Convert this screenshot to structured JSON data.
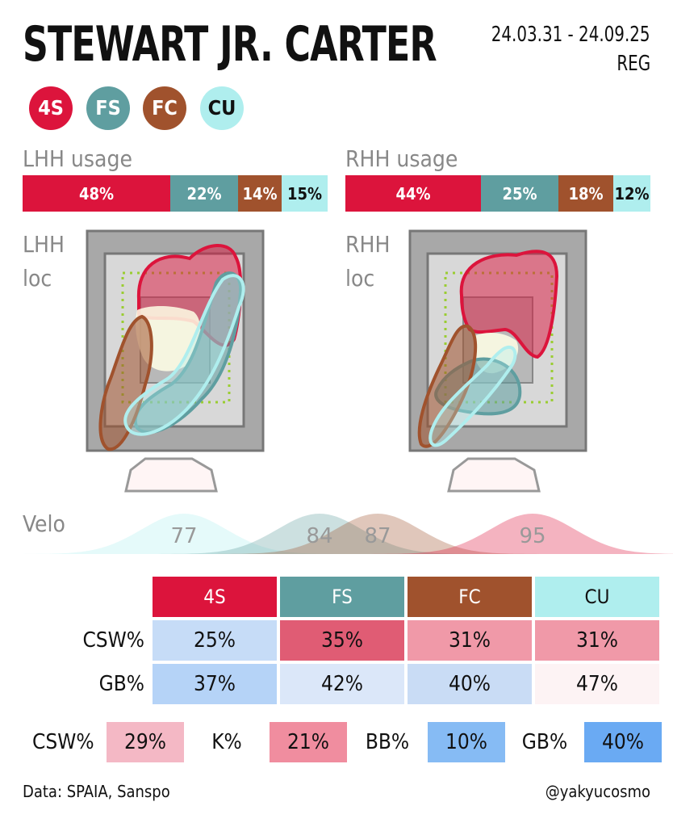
{
  "header": {
    "title": "STEWART JR. CARTER",
    "date_range": "24.03.31 - 24.09.25",
    "season_type": "REG"
  },
  "pitches": [
    {
      "code": "4S",
      "color": "#dc143c"
    },
    {
      "code": "FS",
      "color": "#5f9ea0"
    },
    {
      "code": "FC",
      "color": "#a0522d"
    },
    {
      "code": "CU",
      "color": "#afeeee"
    }
  ],
  "usage": {
    "lhh_label": "LHH usage",
    "rhh_label": "RHH usage",
    "lhh": [
      "48%",
      "22%",
      "14%",
      "15%"
    ],
    "rhh": [
      "44%",
      "25%",
      "18%",
      "12%"
    ]
  },
  "location": {
    "lhh_label_1": "LHH",
    "lhh_label_2": "loc",
    "rhh_label_1": "RHH",
    "rhh_label_2": "loc"
  },
  "chart_data": {
    "type": "stacked-bar",
    "title": "",
    "series_colors": [
      "#dc143c",
      "#5f9ea0",
      "#a0522d",
      "#afeeee"
    ],
    "categories": [
      "4S",
      "FS",
      "FC",
      "CU"
    ],
    "lhh_usage_pct": [
      48,
      22,
      14,
      15
    ],
    "rhh_usage_pct": [
      44,
      25,
      18,
      12
    ],
    "velocity_mean": [
      95,
      84,
      87,
      77
    ],
    "velocity_labels": [
      "95",
      "84",
      "87",
      "77"
    ],
    "csw_pct": [
      25,
      35,
      31,
      31
    ],
    "gb_pct": [
      37,
      42,
      40,
      47
    ]
  },
  "velo": {
    "label": "Velo"
  },
  "table": {
    "row_labels": [
      "CSW%",
      "GB%"
    ],
    "csw": [
      "25%",
      "35%",
      "31%",
      "31%"
    ],
    "gb": [
      "37%",
      "42%",
      "40%",
      "47%"
    ],
    "csw_colors": [
      "#c6dcf7",
      "#e05c74",
      "#f099a8",
      "#f099a8"
    ],
    "gb_colors": [
      "#b5d3f7",
      "#dbe7f9",
      "#c9dcf5",
      "#fdf3f4"
    ]
  },
  "summary": [
    {
      "label": "CSW%",
      "value": "29%",
      "color": "#f4b8c5"
    },
    {
      "label": "K%",
      "value": "21%",
      "color": "#f08d9f"
    },
    {
      "label": "BB%",
      "value": "10%",
      "color": "#86bbf4"
    },
    {
      "label": "GB%",
      "value": "40%",
      "color": "#6aaaf3"
    }
  ],
  "footer": {
    "source": "Data: SPAIA, Sanspo",
    "credit": "@yakyucosmo"
  }
}
